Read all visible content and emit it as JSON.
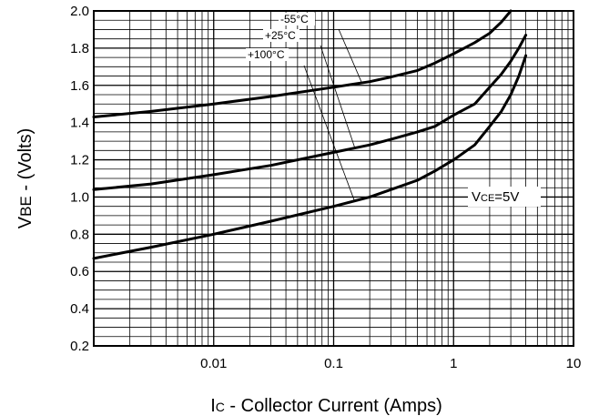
{
  "chart_data": {
    "type": "line",
    "xscale": "log",
    "xlim": [
      0.001,
      10
    ],
    "ylim": [
      0.2,
      2.0
    ],
    "grid": true,
    "xlabel": {
      "main": "I",
      "sub": "C",
      "rest": " - Collector Current (Amps)"
    },
    "ylabel": {
      "main": "V",
      "sub": "BE",
      "rest": " - (Volts)"
    },
    "xticks": [
      {
        "value": 0.01,
        "label": "0.01"
      },
      {
        "value": 0.1,
        "label": "0.1"
      },
      {
        "value": 1,
        "label": "1"
      },
      {
        "value": 10,
        "label": "10"
      }
    ],
    "yticks": [
      {
        "value": 0.2,
        "label": "0.2"
      },
      {
        "value": 0.4,
        "label": "0.4"
      },
      {
        "value": 0.6,
        "label": "0.6"
      },
      {
        "value": 0.8,
        "label": "0.8"
      },
      {
        "value": 1.0,
        "label": "1.0"
      },
      {
        "value": 1.2,
        "label": "1.2"
      },
      {
        "value": 1.4,
        "label": "1.4"
      },
      {
        "value": 1.6,
        "label": "1.6"
      },
      {
        "value": 1.8,
        "label": "1.8"
      },
      {
        "value": 2.0,
        "label": "2.0"
      }
    ],
    "series": [
      {
        "name": "-55°C",
        "x": [
          0.001,
          0.003,
          0.01,
          0.03,
          0.1,
          0.2,
          0.3,
          0.5,
          0.7,
          1,
          1.5,
          2,
          2.5,
          3
        ],
        "y": [
          1.43,
          1.46,
          1.5,
          1.54,
          1.59,
          1.62,
          1.645,
          1.68,
          1.72,
          1.77,
          1.83,
          1.88,
          1.94,
          2.0
        ]
      },
      {
        "name": "+25°C",
        "x": [
          0.001,
          0.003,
          0.01,
          0.03,
          0.1,
          0.2,
          0.3,
          0.5,
          0.7,
          1,
          1.5,
          2,
          2.5,
          3,
          3.5,
          4
        ],
        "y": [
          1.04,
          1.07,
          1.12,
          1.17,
          1.24,
          1.28,
          1.31,
          1.35,
          1.38,
          1.44,
          1.5,
          1.59,
          1.66,
          1.73,
          1.8,
          1.87
        ]
      },
      {
        "name": "+100°C",
        "x": [
          0.001,
          0.003,
          0.01,
          0.03,
          0.1,
          0.2,
          0.3,
          0.5,
          0.7,
          1,
          1.5,
          2,
          2.5,
          3,
          3.5,
          4
        ],
        "y": [
          0.67,
          0.73,
          0.8,
          0.87,
          0.95,
          1.0,
          1.04,
          1.09,
          1.14,
          1.2,
          1.28,
          1.38,
          1.46,
          1.55,
          1.65,
          1.76
        ]
      }
    ],
    "annotations": {
      "labels": [
        "-55°C",
        "+25°C",
        "+100°C"
      ],
      "vce": {
        "main": "V",
        "sub": "CE",
        "rest": "=5V"
      }
    }
  }
}
